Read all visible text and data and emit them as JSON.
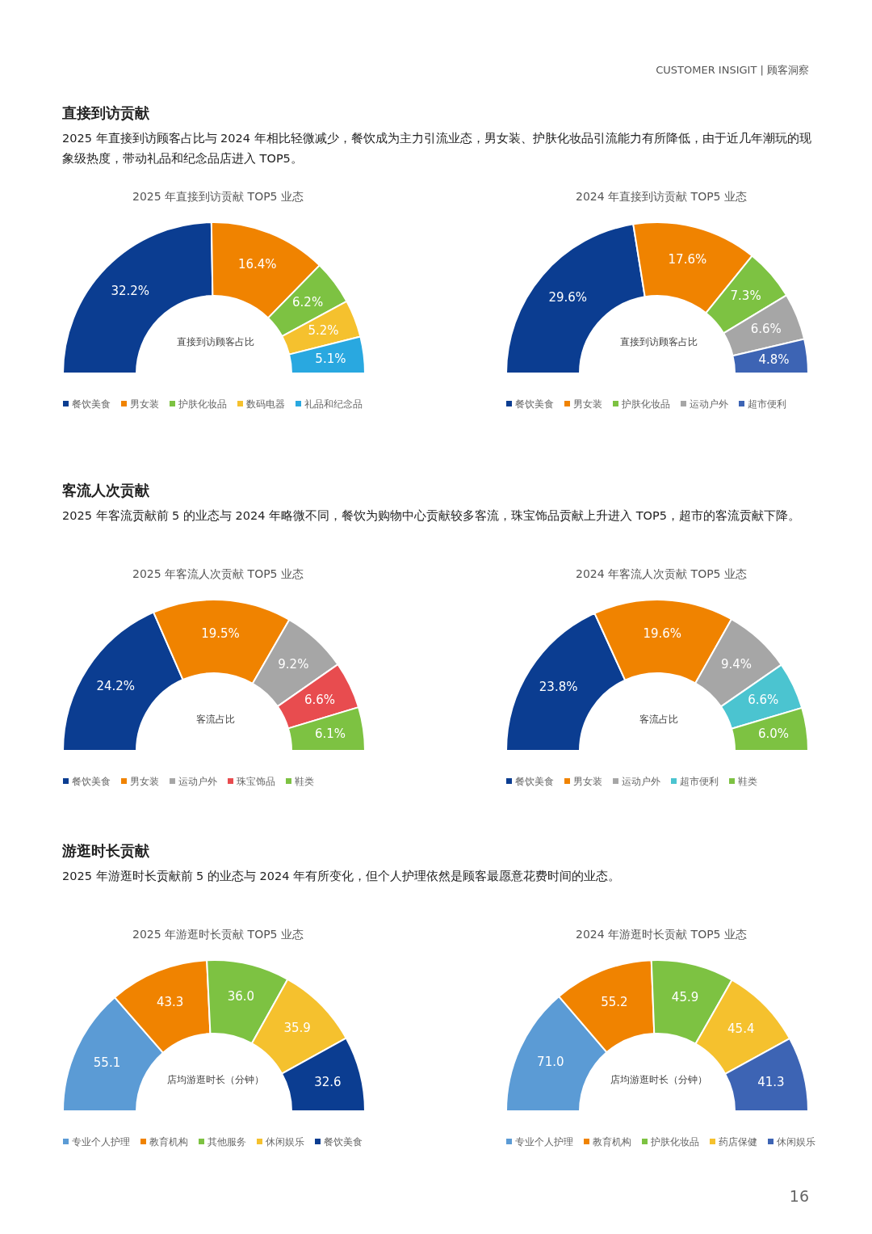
{
  "chart_data": [
    {
      "type": "other",
      "annotations": [
        "CUSTOMER INSIGIT | 顾客洞察",
        "16"
      ]
    },
    {
      "type": "other",
      "title": "直接到访贡献",
      "subtitle": "2025 年直接到访顾客占比与 2024 年相比轻微减少，餐饮成为主力引流业态，男女装、护肤化妆品引流能力有所降低，由于近几年潮玩的现象级热度，带动礼品和纪念品店进入 TOP5。"
    },
    {
      "type": "donut",
      "title": "2025 年直接到访贡献 TOP5 业态",
      "annotations": [
        "直接到访顾客占比"
      ],
      "legend": "bottom",
      "categories": [
        "餐饮美食",
        "男女装",
        "护肤化妆品",
        "数码电器",
        "礼品和纪念品"
      ],
      "values": [
        32.2,
        16.4,
        6.2,
        5.2,
        5.1
      ],
      "value_labels": [
        "32.2%",
        "16.4%",
        "6.2%",
        "5.2%",
        "5.1%"
      ],
      "colors": [
        "#0b3d91",
        "#f08300",
        "#7dc242",
        "#f5c12e",
        "#29a8e0"
      ]
    },
    {
      "type": "donut",
      "title": "2024 年直接到访贡献 TOP5 业态",
      "annotations": [
        "直接到访顾客占比"
      ],
      "legend": "bottom",
      "categories": [
        "餐饮美食",
        "男女装",
        "护肤化妆品",
        "运动户外",
        "超市便利"
      ],
      "values": [
        29.6,
        17.6,
        7.3,
        6.6,
        4.8
      ],
      "value_labels": [
        "29.6%",
        "17.6%",
        "7.3%",
        "6.6%",
        "4.8%"
      ],
      "colors": [
        "#0b3d91",
        "#f08300",
        "#7dc242",
        "#a6a6a6",
        "#3d64b4"
      ]
    },
    {
      "type": "other",
      "title": "客流人次贡献",
      "subtitle": "2025 年客流贡献前 5 的业态与 2024 年略微不同，餐饮为购物中心贡献较多客流，珠宝饰品贡献上升进入 TOP5，超市的客流贡献下降。"
    },
    {
      "type": "donut",
      "title": "2025 年客流人次贡献 TOP5 业态",
      "annotations": [
        "客流占比"
      ],
      "legend": "bottom",
      "categories": [
        "餐饮美食",
        "男女装",
        "运动户外",
        "珠宝饰品",
        "鞋类"
      ],
      "values": [
        24.2,
        19.5,
        9.2,
        6.6,
        6.1
      ],
      "value_labels": [
        "24.2%",
        "19.5%",
        "9.2%",
        "6.6%",
        "6.1%"
      ],
      "colors": [
        "#0b3d91",
        "#f08300",
        "#a6a6a6",
        "#e84c4f",
        "#7dc242"
      ]
    },
    {
      "type": "donut",
      "title": "2024 年客流人次贡献 TOP5 业态",
      "annotations": [
        "客流占比"
      ],
      "legend": "bottom",
      "categories": [
        "餐饮美食",
        "男女装",
        "运动户外",
        "超市便利",
        "鞋类"
      ],
      "values": [
        23.8,
        19.6,
        9.4,
        6.6,
        6.0
      ],
      "value_labels": [
        "23.8%",
        "19.6%",
        "9.4%",
        "6.6%",
        "6.0%"
      ],
      "colors": [
        "#0b3d91",
        "#f08300",
        "#a6a6a6",
        "#4bc4d0",
        "#7dc242"
      ]
    },
    {
      "type": "other",
      "title": "游逛时长贡献",
      "subtitle": "2025 年游逛时长贡献前 5 的业态与 2024 年有所变化，但个人护理依然是顾客最愿意花费时间的业态。"
    },
    {
      "type": "donut",
      "title": "2025 年游逛时长贡献 TOP5 业态",
      "annotations": [
        "店均游逛时长（分钟）"
      ],
      "legend": "bottom",
      "categories": [
        "专业个人护理",
        "教育机构",
        "其他服务",
        "休闲娱乐",
        "餐饮美食"
      ],
      "values": [
        55.1,
        43.3,
        36.0,
        35.9,
        32.6
      ],
      "value_labels": [
        "55.1",
        "43.3",
        "36.0",
        "35.9",
        "32.6"
      ],
      "colors": [
        "#5b9bd5",
        "#f08300",
        "#7dc242",
        "#f5c12e",
        "#0b3d91"
      ]
    },
    {
      "type": "donut",
      "title": "2024 年游逛时长贡献 TOP5 业态",
      "annotations": [
        "店均游逛时长（分钟）"
      ],
      "legend": "bottom",
      "categories": [
        "专业个人护理",
        "教育机构",
        "护肤化妆品",
        "药店保健",
        "休闲娱乐"
      ],
      "values": [
        71.0,
        55.2,
        45.9,
        45.4,
        41.3
      ],
      "value_labels": [
        "71.0",
        "55.2",
        "45.9",
        "45.4",
        "41.3"
      ],
      "colors": [
        "#5b9bd5",
        "#f08300",
        "#7dc242",
        "#f5c12e",
        "#3d64b4"
      ]
    }
  ]
}
